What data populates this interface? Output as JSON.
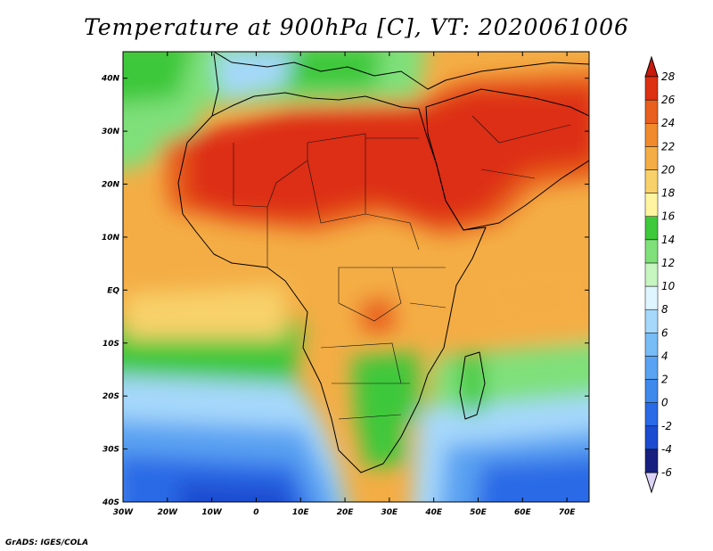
{
  "title": "Temperature at 900hPa [C], VT: 2020061006",
  "credit": "GrADS: IGES/COLA",
  "map": {
    "projection": "lat-lon",
    "lon_range": [
      -30,
      75
    ],
    "lat_range": [
      -40,
      45
    ],
    "lon_ticks": [
      {
        "value": -30,
        "label": "30W"
      },
      {
        "value": -20,
        "label": "20W"
      },
      {
        "value": -10,
        "label": "10W"
      },
      {
        "value": 0,
        "label": "0"
      },
      {
        "value": 10,
        "label": "10E"
      },
      {
        "value": 20,
        "label": "20E"
      },
      {
        "value": 30,
        "label": "30E"
      },
      {
        "value": 40,
        "label": "40E"
      },
      {
        "value": 50,
        "label": "50E"
      },
      {
        "value": 60,
        "label": "60E"
      },
      {
        "value": 70,
        "label": "70E"
      }
    ],
    "lat_ticks": [
      {
        "value": 40,
        "label": "40N"
      },
      {
        "value": 30,
        "label": "30N"
      },
      {
        "value": 20,
        "label": "20N"
      },
      {
        "value": 10,
        "label": "10N"
      },
      {
        "value": 0,
        "label": "EQ"
      },
      {
        "value": -10,
        "label": "10S"
      },
      {
        "value": -20,
        "label": "20S"
      },
      {
        "value": -30,
        "label": "30S"
      },
      {
        "value": -40,
        "label": "40S"
      }
    ]
  },
  "colorbar": {
    "levels": [
      "-6",
      "-4",
      "-2",
      "0",
      "2",
      "4",
      "6",
      "8",
      "10",
      "12",
      "14",
      "16",
      "18",
      "20",
      "22",
      "24",
      "26",
      "28"
    ],
    "colors": [
      "#17207f",
      "#1b4bd0",
      "#2a6ae6",
      "#3f88ec",
      "#5aa2f2",
      "#78bcf6",
      "#a6d8fb",
      "#dff5ff",
      "#c6f5c0",
      "#7fe07a",
      "#3ec83b",
      "#fff4a0",
      "#f8d16a",
      "#f4ad45",
      "#f08a2c",
      "#e85f1e",
      "#dd2f12",
      "#c81a0c"
    ],
    "under_color": "#dcd3f6"
  }
}
